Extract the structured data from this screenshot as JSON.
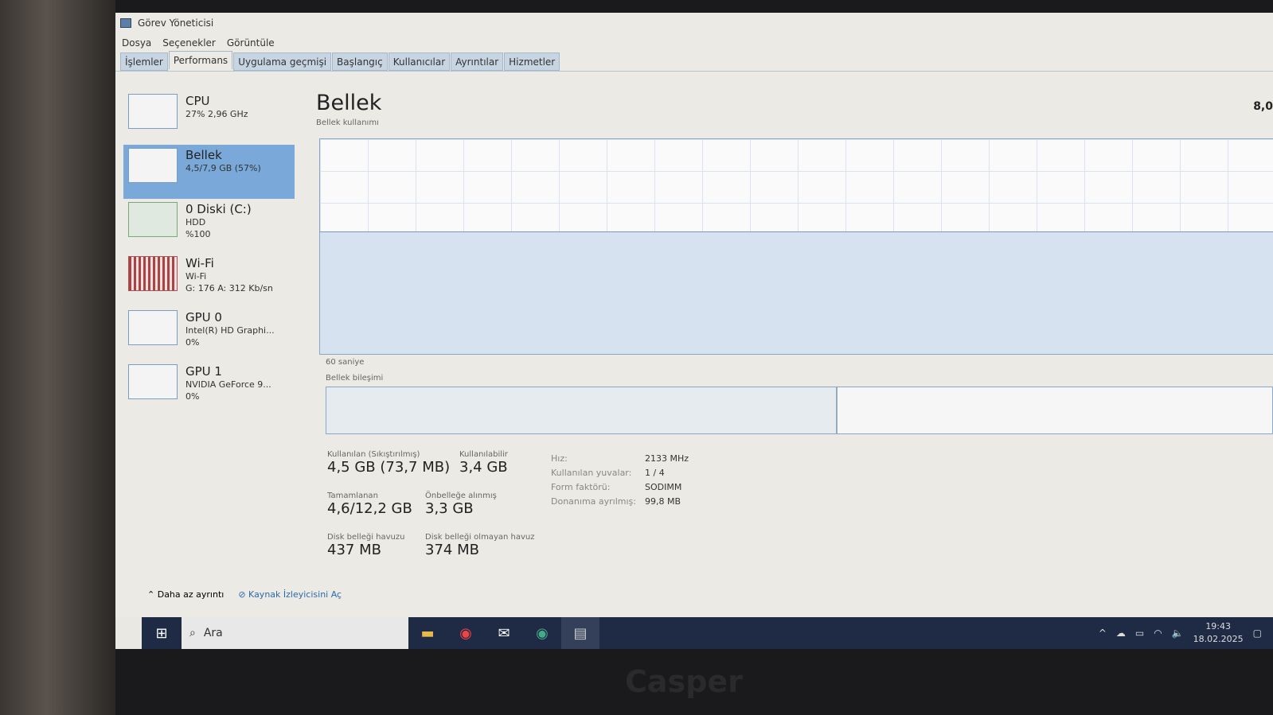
{
  "window": {
    "title": "Görev Yöneticisi"
  },
  "menu": [
    "Dosya",
    "Seçenekler",
    "Görüntüle"
  ],
  "tabs": [
    "İşlemler",
    "Performans",
    "Uygulama geçmişi",
    "Başlangıç",
    "Kullanıcılar",
    "Ayrıntılar",
    "Hizmetler"
  ],
  "active_tab": "Performans",
  "sidebar": [
    {
      "name": "CPU",
      "l1": "27% 2,96 GHz",
      "l2": ""
    },
    {
      "name": "Bellek",
      "l1": "4,5/7,9 GB (57%)",
      "l2": ""
    },
    {
      "name": "0 Diski (C:)",
      "l1": "HDD",
      "l2": "%100"
    },
    {
      "name": "Wi-Fi",
      "l1": "Wi-Fi",
      "l2": "G: 176 A: 312 Kb/sn"
    },
    {
      "name": "GPU 0",
      "l1": "Intel(R) HD Graphi...",
      "l2": "0%"
    },
    {
      "name": "GPU 1",
      "l1": "NVIDIA GeForce 9...",
      "l2": "0%"
    }
  ],
  "main": {
    "title": "Bellek",
    "max": "8,0",
    "usage_label": "Bellek kullanımı",
    "time_label": "60 saniye",
    "composition_label": "Bellek bileşimi",
    "usage_percent": 57,
    "stats": [
      {
        "label": "Kullanılan (Sıkıştırılmış)",
        "value": "4,5 GB (73,7 MB)"
      },
      {
        "label": "Kullanılabilir",
        "value": "3,4 GB"
      },
      {
        "label": "Tamamlanan",
        "value": "4,6/12,2 GB"
      },
      {
        "label": "Önbelleğe alınmış",
        "value": "3,3 GB"
      },
      {
        "label": "Disk belleği havuzu",
        "value": "437 MB"
      },
      {
        "label": "Disk belleği olmayan havuz",
        "value": "374 MB"
      }
    ],
    "props": [
      {
        "k": "Hız:",
        "v": "2133 MHz"
      },
      {
        "k": "Kullanılan yuvalar:",
        "v": "1 / 4"
      },
      {
        "k": "Form faktörü:",
        "v": "SODIMM"
      },
      {
        "k": "Donanıma ayrılmış:",
        "v": "99,8 MB"
      }
    ]
  },
  "footer": {
    "less": "Daha az ayrıntı",
    "monitor": "Kaynak İzleyicisini Aç"
  },
  "taskbar": {
    "search": "Ara",
    "time": "19:43",
    "date": "18.02.2025"
  },
  "bezel_logo": "Casper"
}
